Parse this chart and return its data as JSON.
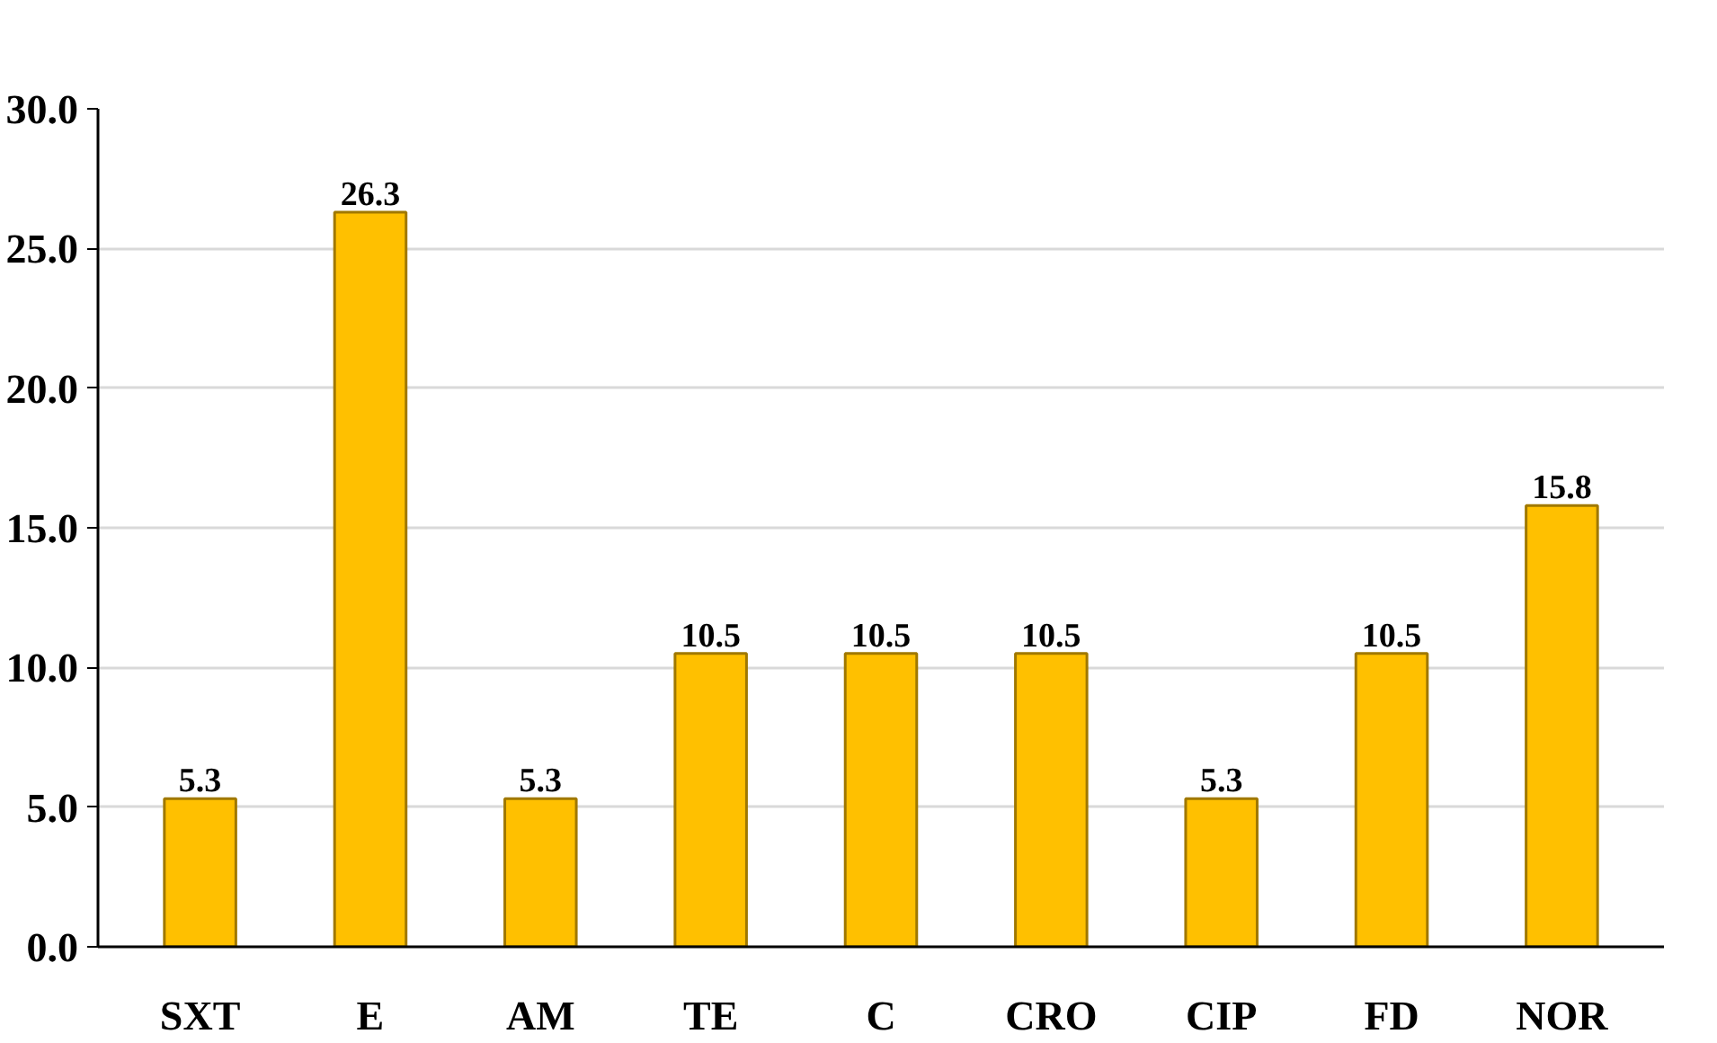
{
  "chart_data": {
    "type": "bar",
    "categories": [
      "SXT",
      "E",
      "AM",
      "TE",
      "C",
      "CRO",
      "CIP",
      "FD",
      "NOR"
    ],
    "values": [
      5.3,
      26.3,
      5.3,
      10.5,
      10.5,
      10.5,
      5.3,
      10.5,
      15.8
    ],
    "color": "#ffc000",
    "ylim": [
      0,
      30
    ],
    "yticks": [
      {
        "value": 0,
        "label": "0.0"
      },
      {
        "value": 5,
        "label": "5.0"
      },
      {
        "value": 10,
        "label": "10.0"
      },
      {
        "value": 15,
        "label": "15.0"
      },
      {
        "value": 20,
        "label": "20.0"
      },
      {
        "value": 25,
        "label": "25.0"
      },
      {
        "value": 30,
        "label": "30.0"
      }
    ],
    "grid": "y",
    "data_labels": true
  }
}
